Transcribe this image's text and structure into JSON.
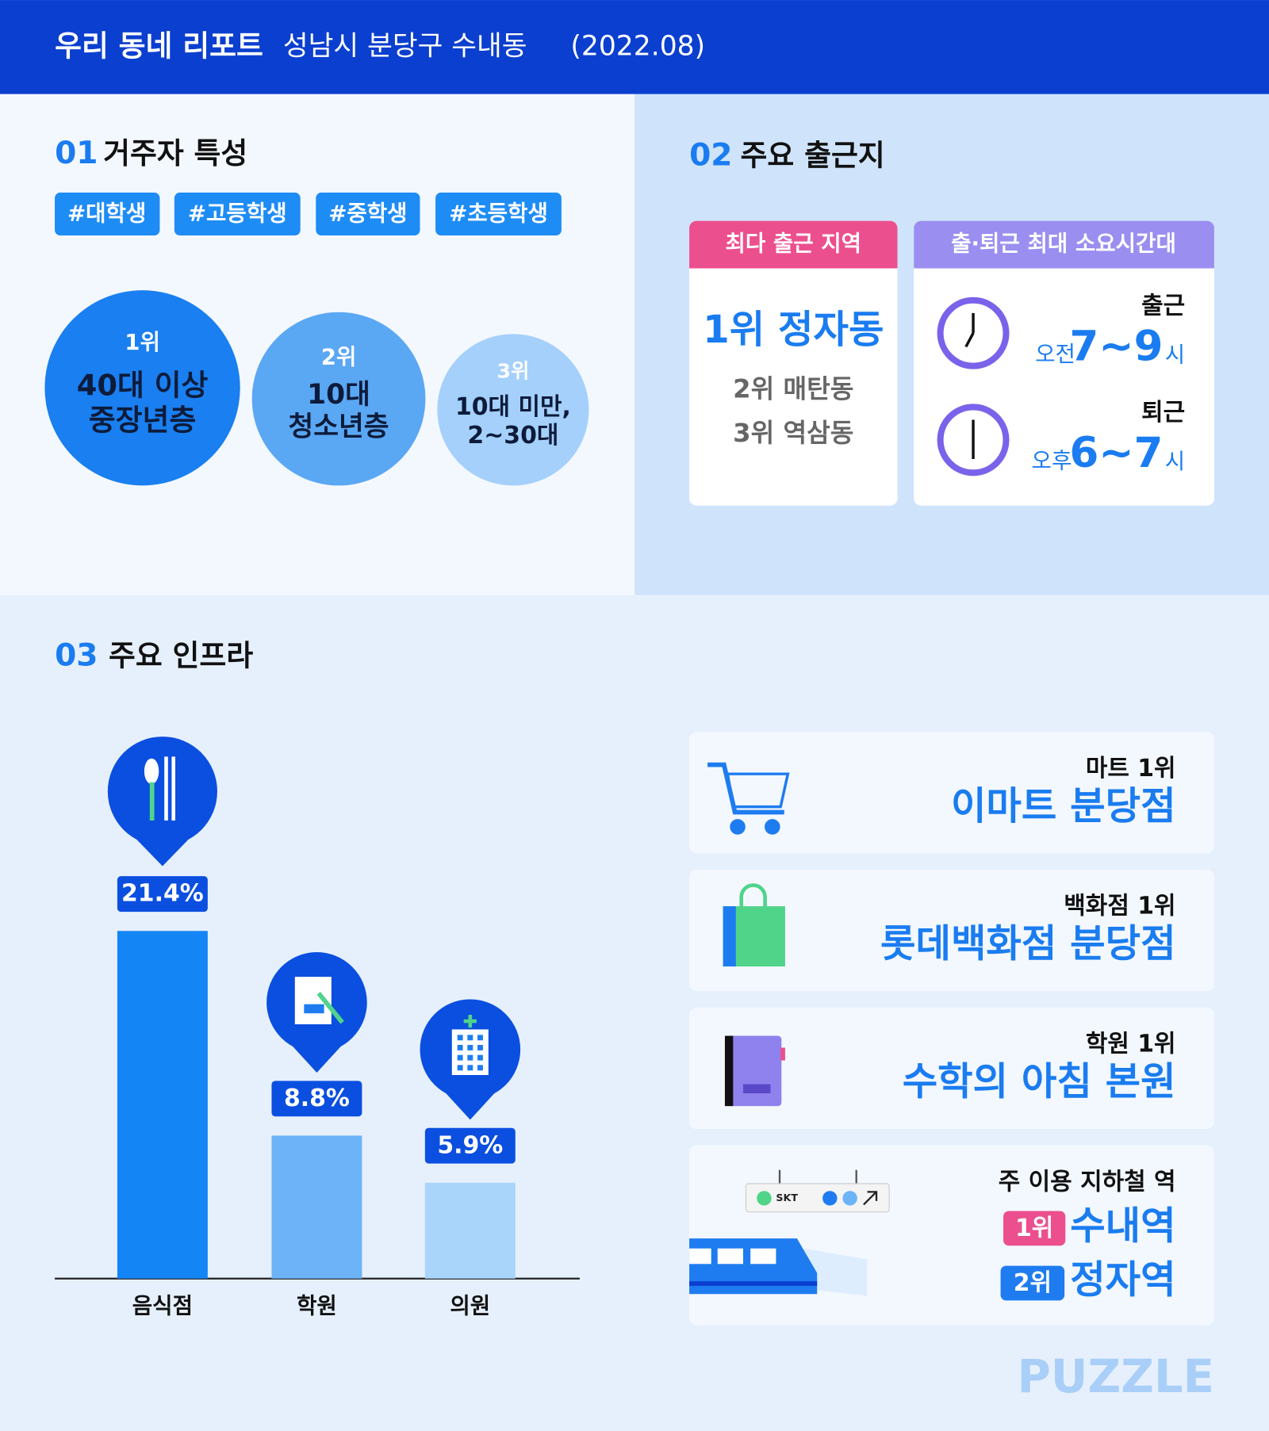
{
  "header": {
    "title": "우리 동네 리포트",
    "location": "성남시 분당구 수내동",
    "date": "(2022.08)"
  },
  "residents": {
    "number": "01",
    "title": "거주자 특성",
    "tags": [
      "#대학생",
      "#고등학생",
      "#중학생",
      "#초등학생"
    ],
    "ranks": [
      {
        "rank": "1위",
        "lines": [
          "40대 이상",
          "중장년층"
        ]
      },
      {
        "rank": "2위",
        "lines": [
          "10대",
          "청소년층"
        ]
      },
      {
        "rank": "3위",
        "lines": [
          "10대 미만,",
          "2~30대"
        ]
      }
    ]
  },
  "commute": {
    "number": "02",
    "title": "주요 출근지",
    "areas": {
      "header": "최다 출근 지역",
      "items": [
        "1위 정자동",
        "2위 매탄동",
        "3위 역삼동"
      ]
    },
    "times": {
      "header": "출·퇴근 최대 소요시간대",
      "rows": [
        {
          "label": "출근",
          "period": "오전",
          "range": "7~9",
          "unit": "시"
        },
        {
          "label": "퇴근",
          "period": "오후",
          "range": "6~7",
          "unit": "시"
        }
      ]
    }
  },
  "infra": {
    "number": "03",
    "title": "주요 인프라",
    "chart_data": {
      "type": "bar",
      "categories": [
        "음식점",
        "학원",
        "의원"
      ],
      "values": [
        21.4,
        8.8,
        5.9
      ],
      "value_labels": [
        "21.4%",
        "8.8%",
        "5.9%"
      ],
      "colors": [
        "#1485f5",
        "#6cb3f8",
        "#a9d5fb"
      ]
    },
    "places": [
      {
        "label": "마트 1위",
        "name": "이마트 분당점"
      },
      {
        "label": "백화점 1위",
        "name": "롯데백화점 분당점"
      },
      {
        "label": "학원 1위",
        "name": "수학의 아침 본원"
      }
    ],
    "subway": {
      "label": "주 이용 지하철 역",
      "sign": "SKT",
      "stations": [
        {
          "rank": "1위",
          "name": "수내역"
        },
        {
          "rank": "2위",
          "name": "정자역"
        }
      ]
    }
  },
  "brand": "PUZZLE"
}
